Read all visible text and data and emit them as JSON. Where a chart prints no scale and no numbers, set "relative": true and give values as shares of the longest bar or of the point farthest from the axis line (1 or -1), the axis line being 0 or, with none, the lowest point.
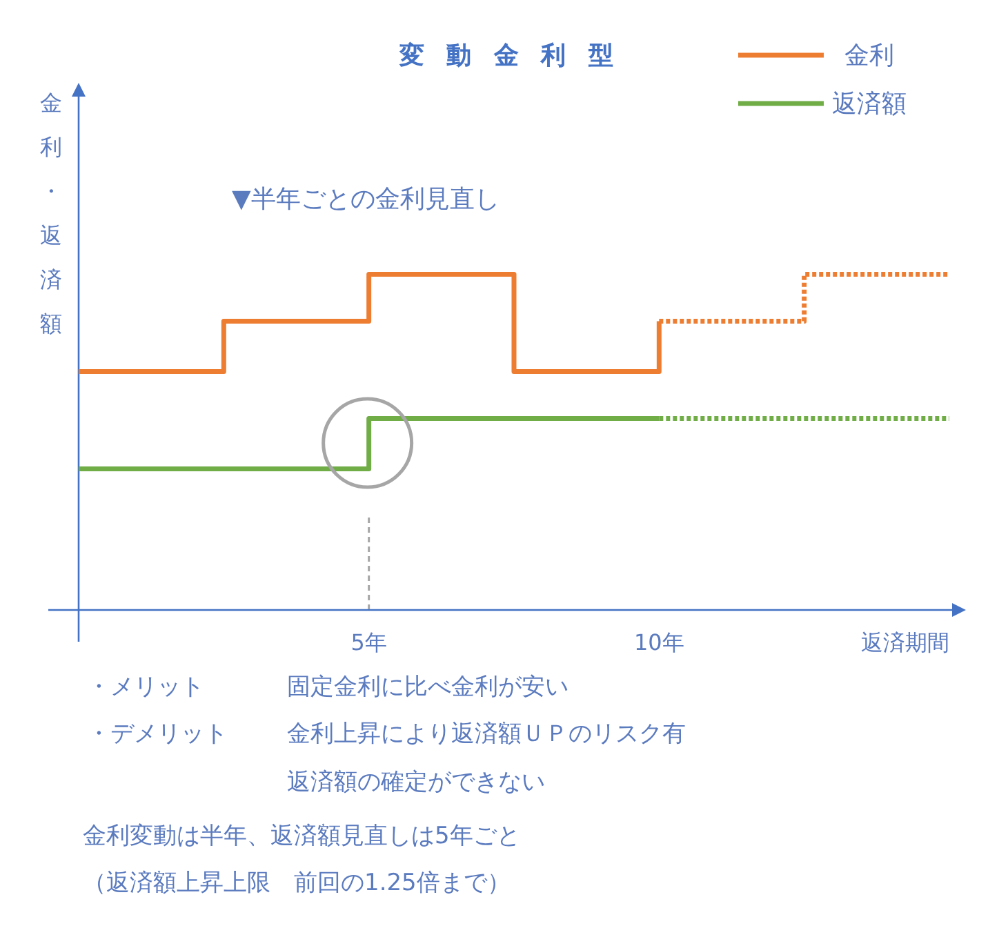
{
  "chart_data": {
    "type": "step",
    "title": "変動金利型",
    "xlabel": "返済期間",
    "ylabel": "金利・返済額",
    "relative": true,
    "xlim": [
      0,
      15
    ],
    "xticks": [
      {
        "value": 5,
        "label": "5年"
      },
      {
        "value": 10,
        "label": "10年"
      }
    ],
    "legend": "top right",
    "marker": "none",
    "series": [
      {
        "name": "金利",
        "color": "#ed7d31",
        "x": [
          0,
          2.5,
          5,
          7.5,
          10
        ],
        "values": [
          0.71,
          0.86,
          1,
          0.71,
          0.86
        ]
      },
      {
        "color": "#ed7d31",
        "line_style": "dotted",
        "x": [
          10,
          12.5,
          15
        ],
        "values": [
          0.86,
          1,
          1
        ]
      },
      {
        "name": "返済額",
        "color": "#70ad47",
        "x": [
          0,
          5,
          10
        ],
        "values": [
          0.42,
          0.57,
          0.57
        ]
      },
      {
        "color": "#70ad47",
        "line_style": "dotted",
        "x": [
          10,
          15
        ],
        "values": [
          0.57,
          0.57
        ]
      }
    ],
    "ref_lines": [
      {
        "axis": "x",
        "value": 5,
        "color": "#a6a6a6",
        "line_style": "dashed"
      }
    ],
    "annotations": [
      "▼半年ごとの金利見直し",
      "・メリット",
      "固定金利に比べ金利が安い",
      "・デメリット",
      "金利上昇により返済額ＵＰのリスク有",
      "返済額の確定ができない",
      "金利変動は半年、返済額見直しは5年ごと",
      "（返済額上昇上限　前回の1.25倍まで）"
    ]
  }
}
